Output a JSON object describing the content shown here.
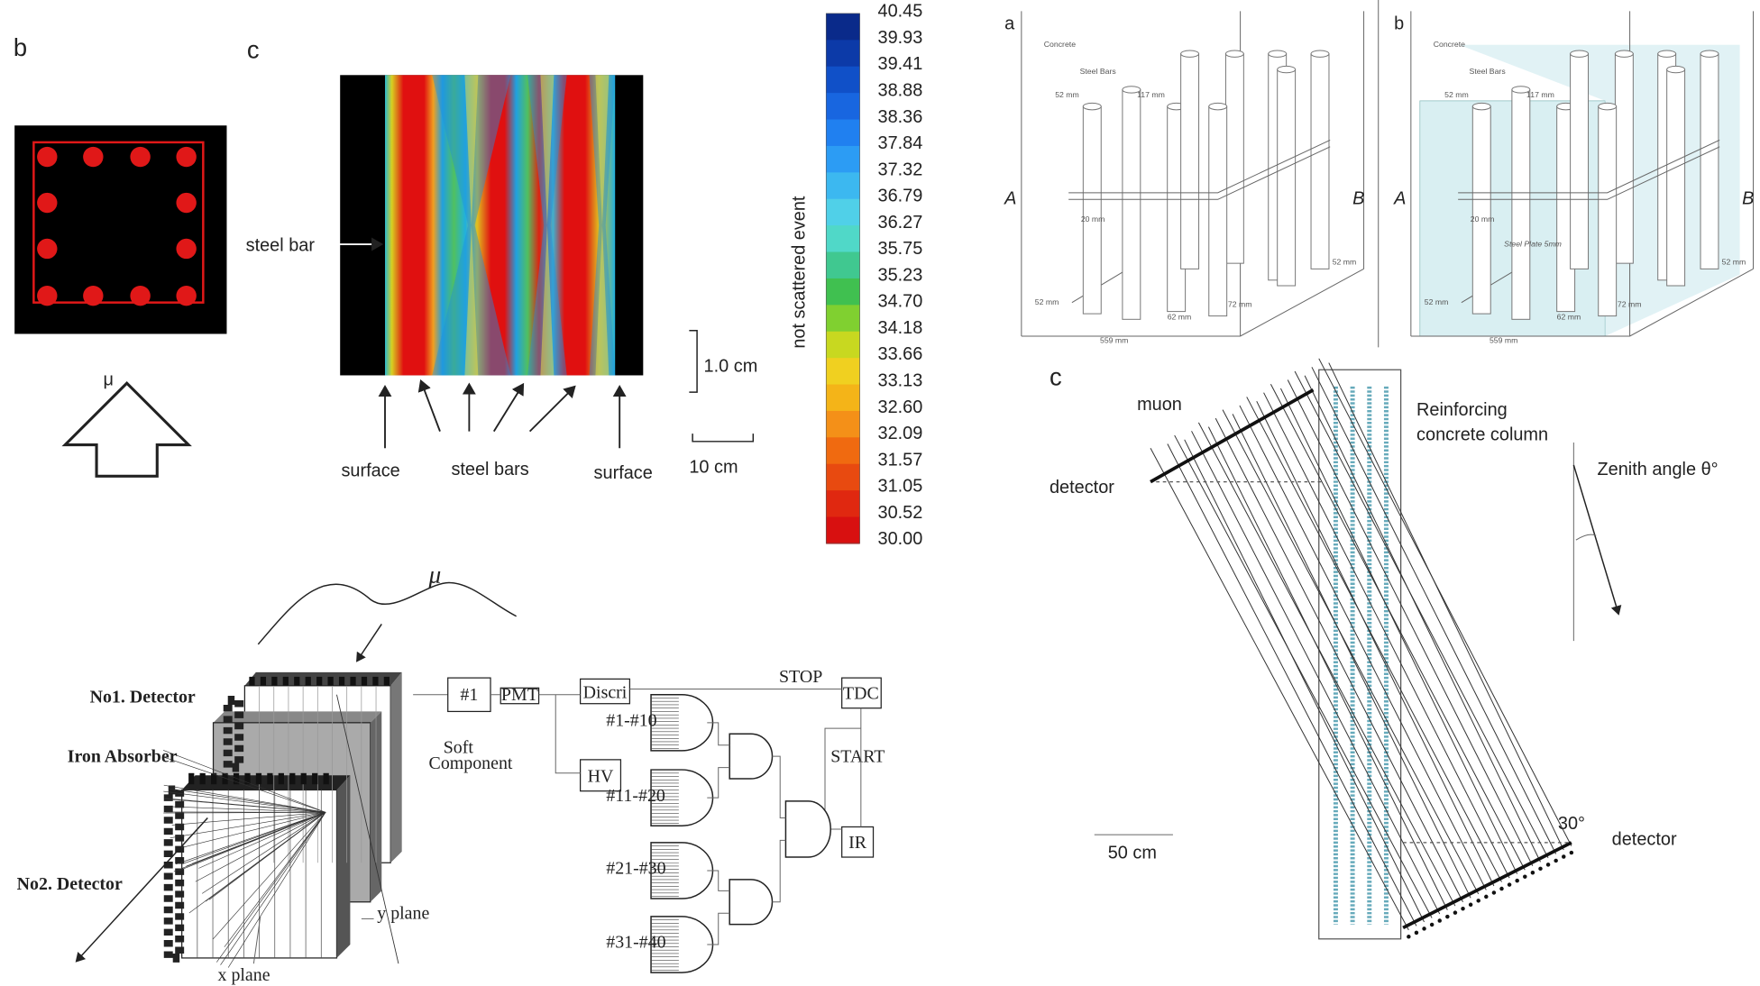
{
  "panel_b_left": {
    "label": "b",
    "mu": "μ"
  },
  "panel_c_left": {
    "label": "c",
    "steel_bar": "steel bar",
    "surface_left": "surface",
    "steel_bars": "steel bars",
    "surface_right": "surface",
    "scale_vertical": "1.0 cm",
    "scale_horizontal": "10 cm",
    "colorbar_title": "not scattered event",
    "colorbar_ticks": [
      "40.45",
      "39.93",
      "39.41",
      "38.88",
      "38.36",
      "37.84",
      "37.32",
      "36.79",
      "36.27",
      "35.75",
      "35.23",
      "34.70",
      "34.18",
      "33.66",
      "33.13",
      "32.60",
      "32.09",
      "31.57",
      "31.05",
      "30.52",
      "30.00"
    ]
  },
  "detector_setup": {
    "mu": "μ",
    "no1": "No1. Detector",
    "iron": "Iron Absorber",
    "no2": "No2. Detector",
    "soft": [
      "Soft",
      "Component"
    ],
    "y_plane": "y plane",
    "x_plane": "x plane",
    "ch1": "#1",
    "pmt": "PMT",
    "discri": "Discri",
    "stop": "STOP",
    "tdc": "TDC",
    "hv": "HV",
    "start": "START",
    "ir": "IR",
    "groups": [
      "#1-#10",
      "#11-#20",
      "#21-#30",
      "#31-#40"
    ]
  },
  "panel_a": {
    "label": "a",
    "concrete": "Concrete",
    "steel_bars": "Steel Bars",
    "d_top1": "52 mm",
    "d_top2": "117 mm",
    "d_mid": "20 mm",
    "d_right": "52 mm",
    "d_left": "52 mm",
    "d_62": "62 mm",
    "d_72": "72 mm",
    "d_width": "559 mm",
    "side_a": "A",
    "side_b": "B"
  },
  "panel_b_right": {
    "label": "b",
    "concrete": "Concrete",
    "steel_bars": "Steel Bars",
    "d_top1": "52 mm",
    "d_top2": "117 mm",
    "d_mid": "20 mm",
    "plate": "Steel Plate 5mm",
    "d_right": "52 mm",
    "d_left": "52 mm",
    "d_62": "62 mm",
    "d_72": "72 mm",
    "d_width": "559 mm",
    "side_a": "A",
    "side_b": "B"
  },
  "panel_c_right": {
    "label": "c",
    "muon": "muon",
    "detector_top": "detector",
    "column": [
      "Reinforcing",
      "concrete column"
    ],
    "zenith": "Zenith angle θ°",
    "angle": "30°",
    "detector_bottom": "detector",
    "scale": "50 cm"
  }
}
